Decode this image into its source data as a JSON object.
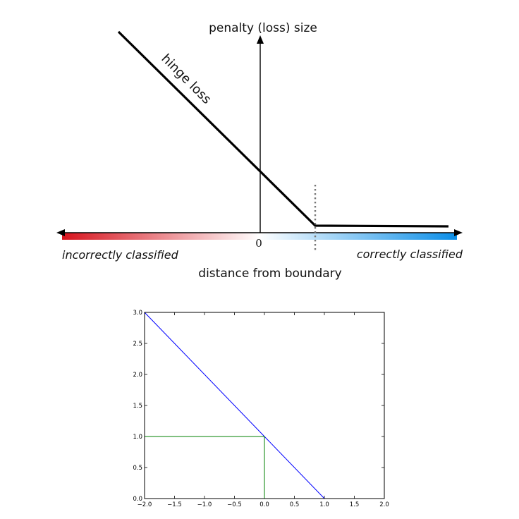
{
  "diagram": {
    "y_axis_label": "penalty (loss) size",
    "x_axis_label": "distance from boundary",
    "curve_label": "hinge loss",
    "origin_label": "0",
    "left_label": "incorrectly classified",
    "right_label": "correctly classified",
    "colors": {
      "negative": "#d7141e",
      "positive": "#0a8ee8",
      "curve": "#000000",
      "margin_marker": "#777777"
    }
  },
  "chart_data": {
    "type": "line",
    "x": [
      -2.0,
      -1.0,
      0.0,
      1.0,
      2.0
    ],
    "series": [
      {
        "color": "#0000ff",
        "points": [
          [
            -2.0,
            3.0
          ],
          [
            1.0,
            0.0
          ],
          [
            2.0,
            0.0
          ]
        ]
      },
      {
        "color": "#008000",
        "points": [
          [
            -2.0,
            1.0
          ],
          [
            0.0,
            1.0
          ],
          [
            0.0,
            0.0
          ],
          [
            2.0,
            0.0
          ]
        ]
      }
    ],
    "xlim": [
      -2.0,
      2.0
    ],
    "ylim": [
      0.0,
      3.0
    ],
    "xticks": [
      "−2.0",
      "−1.5",
      "−1.0",
      "−0.5",
      "0.0",
      "0.5",
      "1.0",
      "1.5",
      "2.0"
    ],
    "yticks": [
      "0.0",
      "0.5",
      "1.0",
      "1.5",
      "2.0",
      "2.5",
      "3.0"
    ],
    "xlabel": "",
    "ylabel": "",
    "title": "",
    "grid": false
  }
}
